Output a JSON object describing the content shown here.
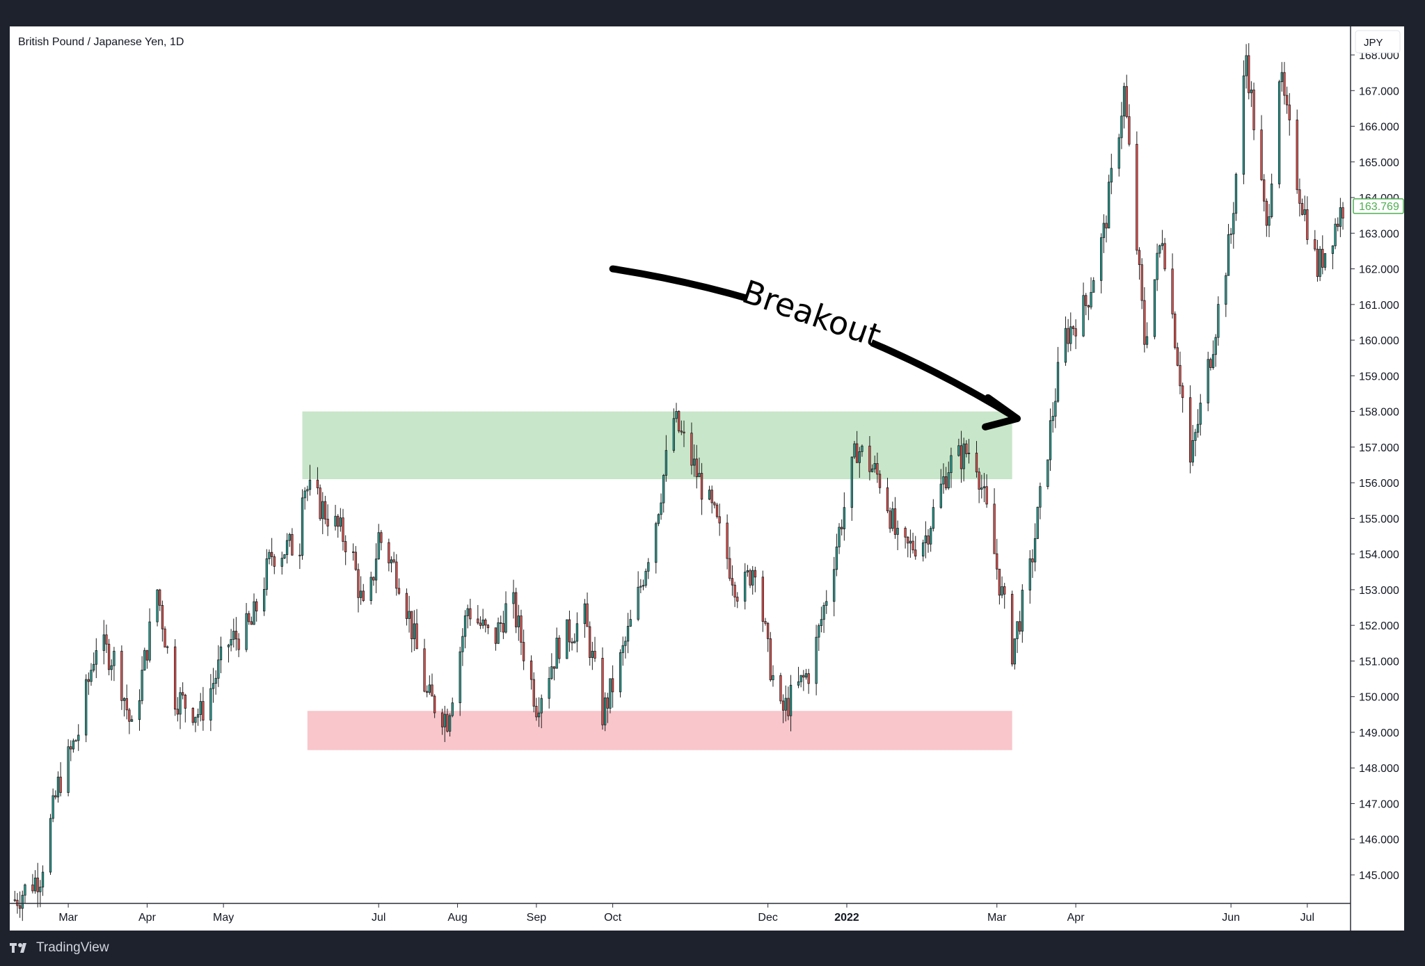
{
  "chart_title": "British Pound / Japanese Yen, 1D",
  "currency_label": "JPY",
  "footer": {
    "brand": "TradingView",
    "logo_icon": "tradingview-logo-icon"
  },
  "annotation": {
    "text": "Breakout",
    "arrow_icon": "curved-arrow-icon"
  },
  "colors": {
    "bullish": "#26a69a",
    "bearish": "#ef5350",
    "resistance_zone": "#c8e6c9",
    "support_zone": "#f8c6cb",
    "last_price": "#4caf50"
  },
  "chart_data": {
    "type": "candlestick",
    "title": "British Pound / Japanese Yen, 1D",
    "ylabel": "JPY",
    "ylim": [
      144.2,
      168.8
    ],
    "xlim": [
      "2021-02-06",
      "2022-07-18"
    ],
    "x_ticks": [
      {
        "date": "2021-03-01",
        "label": "Mar"
      },
      {
        "date": "2021-04-01",
        "label": "Apr"
      },
      {
        "date": "2021-05-01",
        "label": "May"
      },
      {
        "date": "2021-07-01",
        "label": "Jul"
      },
      {
        "date": "2021-08-01",
        "label": "Aug"
      },
      {
        "date": "2021-09-01",
        "label": "Sep"
      },
      {
        "date": "2021-10-01",
        "label": "Oct"
      },
      {
        "date": "2021-12-01",
        "label": "Dec"
      },
      {
        "date": "2022-01-01",
        "label": "2022",
        "bold": true
      },
      {
        "date": "2022-03-01",
        "label": "Mar"
      },
      {
        "date": "2022-04-01",
        "label": "Apr"
      },
      {
        "date": "2022-06-01",
        "label": "Jun"
      },
      {
        "date": "2022-07-01",
        "label": "Jul"
      }
    ],
    "y_ticks": [
      "145.000",
      "146.000",
      "147.000",
      "148.000",
      "149.000",
      "150.000",
      "151.000",
      "152.000",
      "153.000",
      "154.000",
      "155.000",
      "156.000",
      "157.000",
      "158.000",
      "159.000",
      "160.000",
      "161.000",
      "162.000",
      "163.000",
      "164.000",
      "165.000",
      "166.000",
      "167.000",
      "168.000"
    ],
    "last_price": "163.769",
    "zones": [
      {
        "name": "resistance",
        "from": "2021-06-01",
        "to": "2022-03-07",
        "low": 156.1,
        "high": 158.0
      },
      {
        "name": "support",
        "from": "2021-06-03",
        "to": "2022-03-07",
        "low": 148.5,
        "high": 149.6
      }
    ],
    "breakout_arrow": {
      "from": [
        "2021-10-01",
        162.0
      ],
      "to": [
        "2022-03-09",
        157.8
      ]
    },
    "close_path": [
      [
        "2021-02-08",
        144.3
      ],
      [
        "2021-02-18",
        145.0
      ],
      [
        "2021-02-25",
        147.5
      ],
      [
        "2021-03-05",
        149.0
      ],
      [
        "2021-03-12",
        151.5
      ],
      [
        "2021-03-20",
        151.0
      ],
      [
        "2021-03-26",
        149.0
      ],
      [
        "2021-04-05",
        153.0
      ],
      [
        "2021-04-12",
        150.0
      ],
      [
        "2021-04-22",
        149.5
      ],
      [
        "2021-05-03",
        151.5
      ],
      [
        "2021-05-12",
        152.0
      ],
      [
        "2021-05-20",
        154.0
      ],
      [
        "2021-05-31",
        154.3
      ],
      [
        "2021-06-01",
        156.0
      ],
      [
        "2021-06-12",
        155.0
      ],
      [
        "2021-06-20",
        154.2
      ],
      [
        "2021-06-26",
        152.0
      ],
      [
        "2021-07-01",
        154.5
      ],
      [
        "2021-07-10",
        153.2
      ],
      [
        "2021-07-20",
        150.0
      ],
      [
        "2021-07-28",
        149.4
      ],
      [
        "2021-08-05",
        152.5
      ],
      [
        "2021-08-15",
        151.5
      ],
      [
        "2021-08-22",
        152.8
      ],
      [
        "2021-09-01",
        149.8
      ],
      [
        "2021-09-10",
        151.5
      ],
      [
        "2021-09-20",
        152.2
      ],
      [
        "2021-09-27",
        149.5
      ],
      [
        "2021-10-02",
        150.5
      ],
      [
        "2021-10-10",
        152.5
      ],
      [
        "2021-10-18",
        155.0
      ],
      [
        "2021-10-25",
        157.8
      ],
      [
        "2021-10-31",
        156.8
      ],
      [
        "2021-11-10",
        155.0
      ],
      [
        "2021-11-20",
        152.8
      ],
      [
        "2021-11-26",
        153.8
      ],
      [
        "2021-12-01",
        151.2
      ],
      [
        "2021-12-06",
        149.5
      ],
      [
        "2021-12-18",
        150.8
      ],
      [
        "2021-12-23",
        152.5
      ],
      [
        "2021-12-30",
        155.0
      ],
      [
        "2022-01-05",
        157.0
      ],
      [
        "2022-01-15",
        156.0
      ],
      [
        "2022-01-22",
        154.0
      ],
      [
        "2022-02-01",
        154.5
      ],
      [
        "2022-02-10",
        156.5
      ],
      [
        "2022-02-20",
        157.0
      ],
      [
        "2022-02-28",
        154.0
      ],
      [
        "2022-03-07",
        151.3
      ],
      [
        "2022-03-14",
        153.5
      ],
      [
        "2022-03-20",
        156.5
      ],
      [
        "2022-03-27",
        160.0
      ],
      [
        "2022-04-05",
        161.0
      ],
      [
        "2022-04-12",
        163.0
      ],
      [
        "2022-04-20",
        167.0
      ],
      [
        "2022-04-28",
        160.0
      ],
      [
        "2022-05-05",
        163.0
      ],
      [
        "2022-05-12",
        159.0
      ],
      [
        "2022-05-16",
        156.5
      ],
      [
        "2022-05-25",
        160.0
      ],
      [
        "2022-06-01",
        163.0
      ],
      [
        "2022-06-07",
        168.0
      ],
      [
        "2022-06-15",
        163.0
      ],
      [
        "2022-06-20",
        167.5
      ],
      [
        "2022-06-27",
        164.5
      ],
      [
        "2022-07-05",
        162.0
      ],
      [
        "2022-07-15",
        163.77
      ]
    ]
  }
}
